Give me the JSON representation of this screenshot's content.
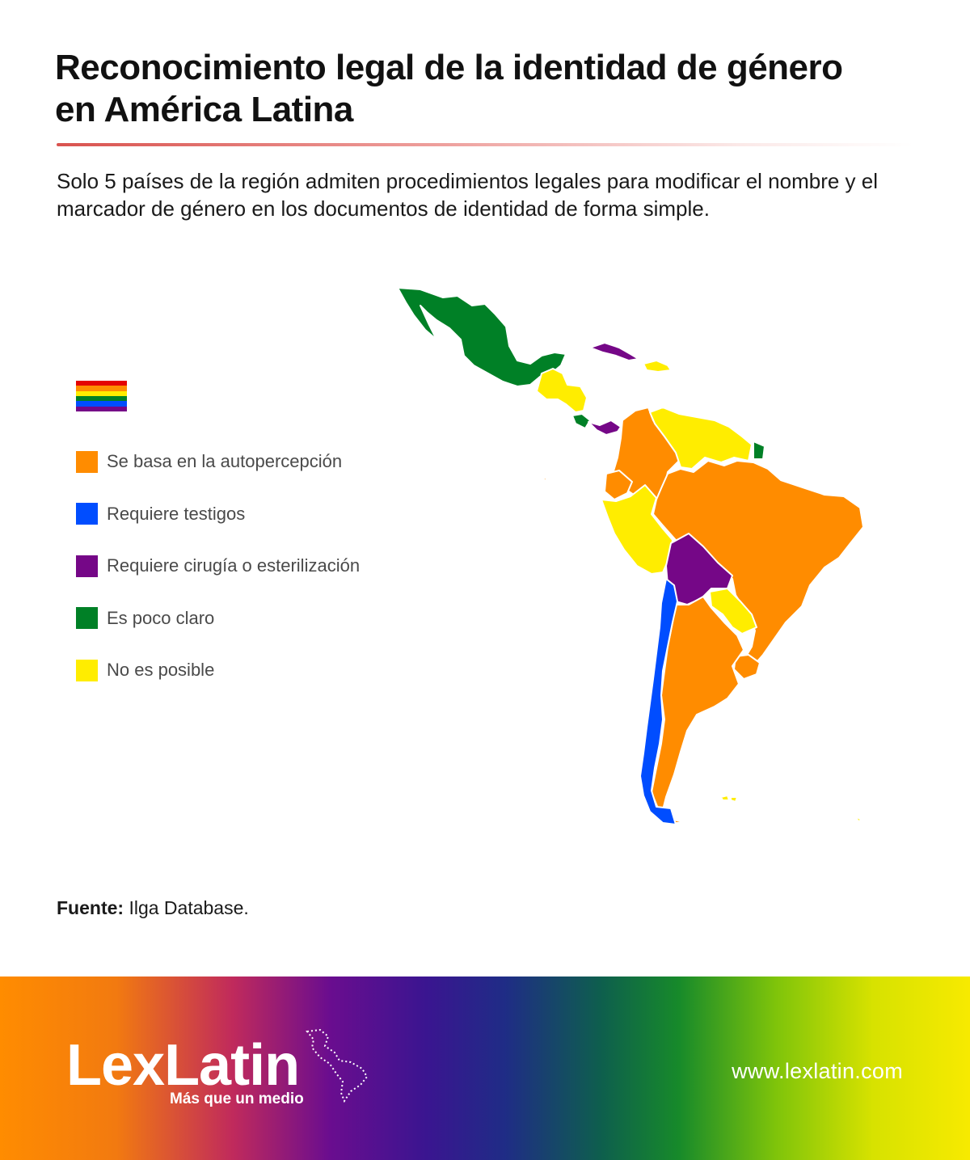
{
  "title": "Reconocimiento legal de la identidad de género en América Latina",
  "subtitle": "Solo 5 países de la región admiten procedimientos legales para modificar el nombre y el marcador de género en los documentos de identidad de forma simple.",
  "pride_flag_colors": [
    "#e40303",
    "#ff8c00",
    "#ffed00",
    "#008026",
    "#004dff",
    "#750787"
  ],
  "legend": [
    {
      "label": "Se basa en la autopercepción",
      "color": "#ff8c00"
    },
    {
      "label": "Requiere testigos",
      "color": "#004dff"
    },
    {
      "label": "Requiere cirugía o esterilización",
      "color": "#750787"
    },
    {
      "label": "Es poco claro",
      "color": "#008026"
    },
    {
      "label": "No es posible",
      "color": "#ffed00"
    }
  ],
  "map": {
    "colors": {
      "autopercepcion": "#ff8c00",
      "testigos": "#004dff",
      "cirugia": "#750787",
      "poco_claro": "#008026",
      "no_posible": "#ffed00"
    }
  },
  "source": {
    "label": "Fuente:",
    "text": " Ilga Database."
  },
  "footer": {
    "brand": "LexLatin",
    "tagline": "Más que un medio",
    "url": "www.lexlatin.com"
  }
}
